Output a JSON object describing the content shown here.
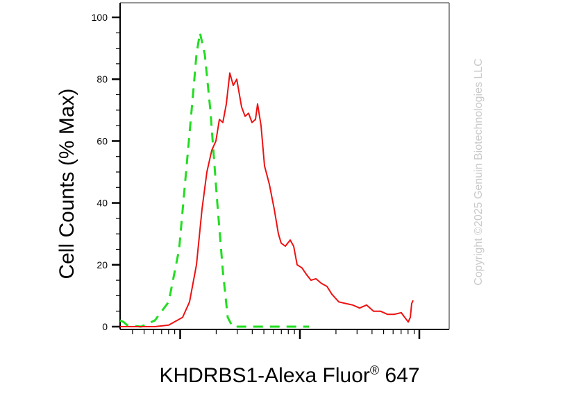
{
  "chart_data": {
    "type": "line",
    "ylabel": "Cell Counts (% Max)",
    "xlabel_main": "KHDRBS1-Alexa Fluor",
    "xlabel_sup": "®",
    "xlabel_tail": " 647",
    "xscale": "log",
    "yticks": [
      "0",
      "20",
      "40",
      "60",
      "80",
      "100"
    ],
    "ylim": [
      0,
      100
    ],
    "grid": false,
    "series": [
      {
        "color": "#22dd22",
        "style": "dashed",
        "points": [
          [
            0,
            2
          ],
          [
            5,
            1.5
          ],
          [
            10,
            0.5
          ],
          [
            30,
            0
          ],
          [
            50,
            2
          ],
          [
            70,
            8
          ],
          [
            85,
            25
          ],
          [
            95,
            50
          ],
          [
            105,
            75
          ],
          [
            110,
            88
          ],
          [
            115,
            95
          ],
          [
            122,
            88
          ],
          [
            130,
            70
          ],
          [
            140,
            40
          ],
          [
            148,
            18
          ],
          [
            155,
            3
          ],
          [
            162,
            0
          ],
          [
            272,
            0
          ]
        ]
      },
      {
        "color": "#ee1111",
        "style": "solid",
        "points": [
          [
            0,
            0
          ],
          [
            50,
            0
          ],
          [
            70,
            0.5
          ],
          [
            90,
            3
          ],
          [
            100,
            8
          ],
          [
            110,
            20
          ],
          [
            118,
            38
          ],
          [
            125,
            50
          ],
          [
            132,
            57
          ],
          [
            138,
            60
          ],
          [
            143,
            67
          ],
          [
            148,
            66
          ],
          [
            153,
            72
          ],
          [
            158,
            82
          ],
          [
            163,
            78
          ],
          [
            168,
            80
          ],
          [
            175,
            71
          ],
          [
            180,
            68
          ],
          [
            185,
            69
          ],
          [
            190,
            66
          ],
          [
            195,
            67
          ],
          [
            198,
            72
          ],
          [
            203,
            65
          ],
          [
            208,
            52
          ],
          [
            215,
            46
          ],
          [
            222,
            38
          ],
          [
            228,
            30
          ],
          [
            232,
            27
          ],
          [
            238,
            26
          ],
          [
            245,
            28
          ],
          [
            250,
            26
          ],
          [
            255,
            20
          ],
          [
            262,
            19
          ],
          [
            268,
            17
          ],
          [
            275,
            15
          ],
          [
            282,
            15.5
          ],
          [
            290,
            14
          ],
          [
            298,
            13
          ],
          [
            305,
            10.5
          ],
          [
            315,
            8
          ],
          [
            325,
            7.5
          ],
          [
            335,
            7
          ],
          [
            345,
            6
          ],
          [
            355,
            7
          ],
          [
            365,
            5
          ],
          [
            375,
            5
          ],
          [
            385,
            4
          ],
          [
            395,
            4
          ],
          [
            405,
            4.5
          ],
          [
            410,
            3
          ],
          [
            415,
            1.5
          ],
          [
            418,
            3
          ],
          [
            420,
            7.5
          ],
          [
            422,
            8.5
          ]
        ]
      }
    ]
  },
  "watermark": "Copyright ©2025 Genuin Biotechnologies LLC"
}
